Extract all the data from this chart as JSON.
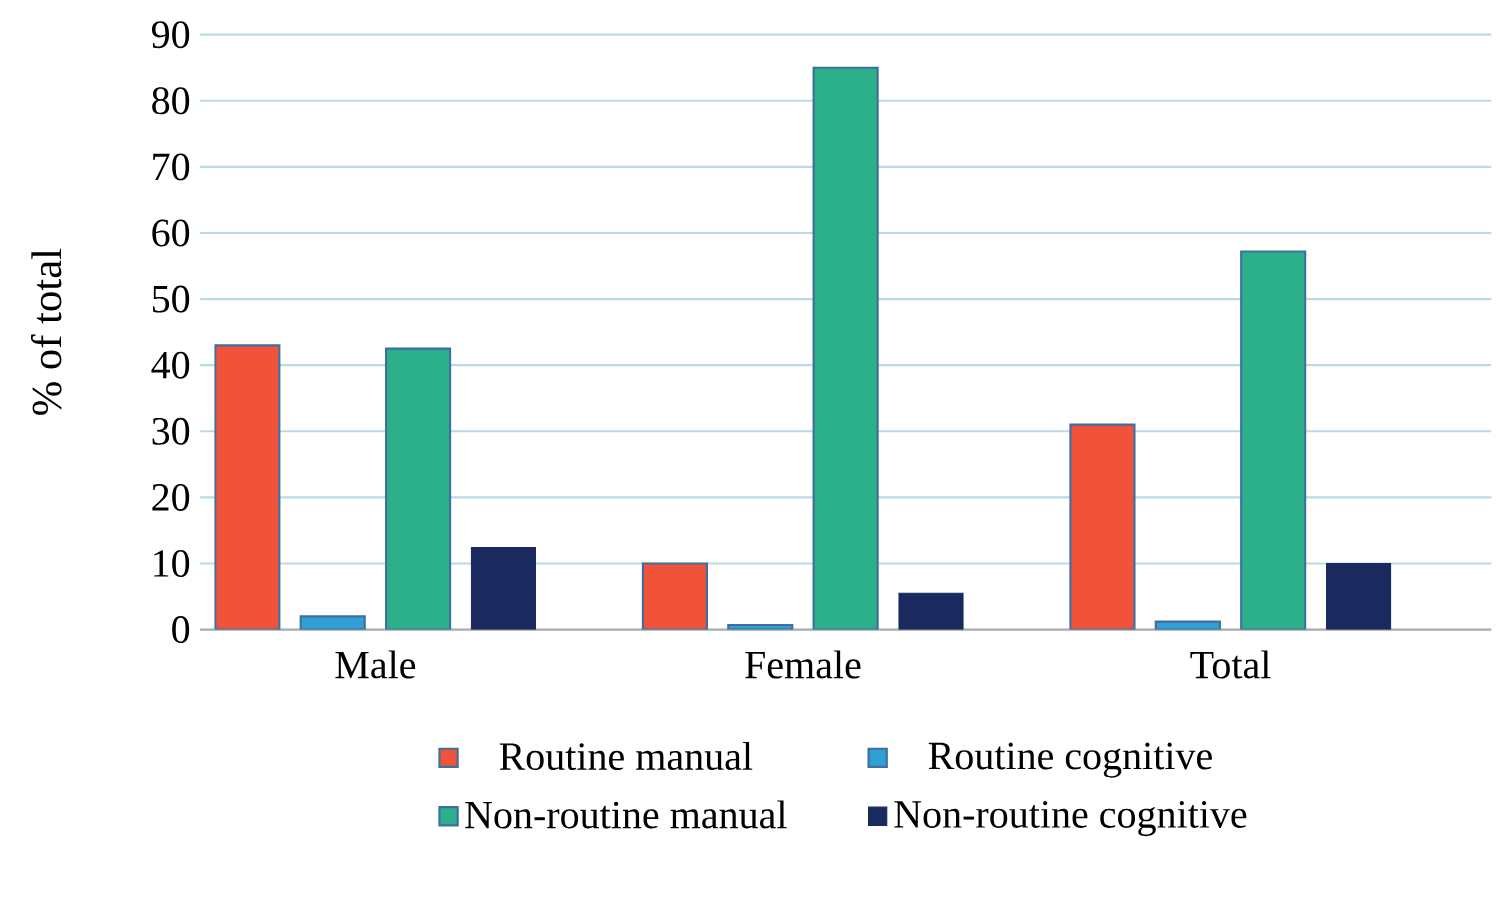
{
  "chart_data": {
    "type": "bar",
    "ylabel": "% of total",
    "categories": [
      "Male",
      "Female",
      "Total"
    ],
    "series": [
      {
        "name": "Routine manual",
        "color": "#f0533a",
        "values": [
          43,
          10,
          31
        ]
      },
      {
        "name": "Routine cognitive",
        "color": "#2f9fd6",
        "values": [
          2,
          0.7,
          1.2
        ]
      },
      {
        "name": "Non-routine manual",
        "color": "#2bb08a",
        "values": [
          42.5,
          85,
          57.2
        ]
      },
      {
        "name": "Non-routine cognitive",
        "color": "#1b2a5e",
        "values": [
          12.4,
          5.5,
          10
        ]
      }
    ],
    "ylim": [
      0,
      90
    ],
    "yticks": [
      0,
      10,
      20,
      30,
      40,
      50,
      60,
      70,
      80,
      90
    ],
    "grid": "y",
    "legend": "bottom"
  }
}
